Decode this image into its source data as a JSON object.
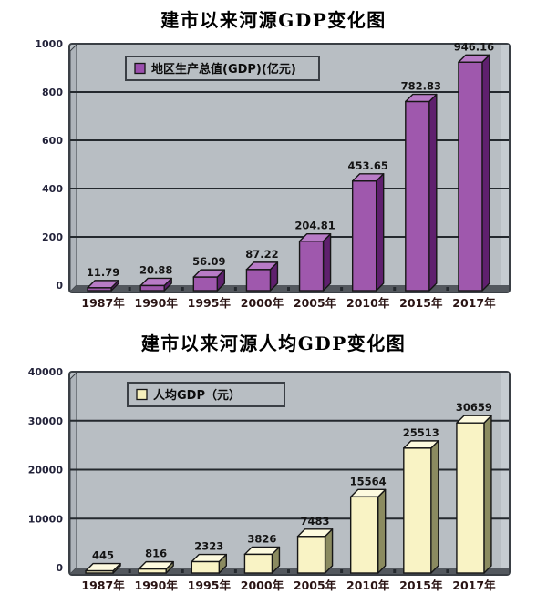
{
  "colors": {
    "panel": "#b8bec3",
    "panel_right": "#c6ccd1",
    "panel_left": "#aeb4ba",
    "floor": "#53585e",
    "grid": "#24292e",
    "border": "#3a3f45"
  },
  "chart_data": [
    {
      "type": "bar",
      "title": "建市以来河源GDP变化图",
      "legend": "地区生产总值(GDP)(亿元)",
      "categories": [
        "1987年",
        "1990年",
        "1995年",
        "2000年",
        "2005年",
        "2010年",
        "2015年",
        "2017年"
      ],
      "values": [
        11.79,
        20.88,
        56.09,
        87.22,
        204.81,
        453.65,
        782.83,
        946.16
      ],
      "value_labels": [
        "11.79",
        "20.88",
        "56.09",
        "87.22",
        "204.81",
        "453.65",
        "782.83",
        "946.16"
      ],
      "xlabel": "",
      "ylabel": "",
      "ylim": [
        0,
        1000
      ],
      "yticks": [
        0,
        200,
        400,
        600,
        800,
        1000
      ],
      "grid": "on",
      "legend_position": "top-left-inside",
      "bar_colors": {
        "face": "#9f58ad",
        "top": "#b87bc6",
        "side": "#5f206e",
        "outline": "#161616",
        "legend_swatch": "#9b4fae"
      }
    },
    {
      "type": "bar",
      "title": "建市以来河源人均GDP变化图",
      "legend": "人均GDP（元）",
      "categories": [
        "1987年",
        "1990年",
        "1995年",
        "2000年",
        "2005年",
        "2010年",
        "2015年",
        "2017年"
      ],
      "values": [
        445,
        816,
        2323,
        3826,
        7483,
        15564,
        25513,
        30659
      ],
      "value_labels": [
        "445",
        "816",
        "2323",
        "3826",
        "7483",
        "15564",
        "25513",
        "30659"
      ],
      "xlabel": "",
      "ylabel": "",
      "ylim": [
        0,
        40000
      ],
      "yticks": [
        0,
        10000,
        20000,
        30000,
        40000
      ],
      "grid": "on",
      "legend_position": "top-left-inside",
      "bar_colors": {
        "face": "#f9f3c5",
        "top": "#fdfadf",
        "side": "#8b8b60",
        "outline": "#161616",
        "legend_swatch": "#f6f0bc"
      }
    }
  ]
}
